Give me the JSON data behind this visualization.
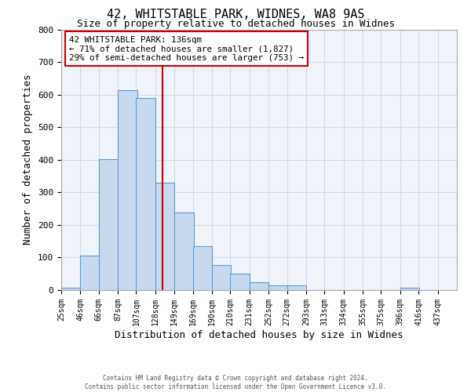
{
  "title_line1": "42, WHITSTABLE PARK, WIDNES, WA8 9AS",
  "title_line2": "Size of property relative to detached houses in Widnes",
  "xlabel": "Distribution of detached houses by size in Widnes",
  "ylabel": "Number of detached properties",
  "bar_left_edges": [
    25,
    46,
    66,
    87,
    107,
    128,
    149,
    169,
    190,
    210,
    231,
    252,
    272,
    293,
    313,
    334,
    355,
    375,
    396,
    416
  ],
  "bar_heights": [
    7,
    105,
    402,
    614,
    590,
    330,
    237,
    135,
    76,
    50,
    25,
    15,
    14,
    0,
    0,
    0,
    0,
    0,
    7,
    0
  ],
  "bin_width": 21,
  "bar_facecolor": "#c9d9ed",
  "bar_edgecolor": "#5b9bd5",
  "vline_x": 136,
  "vline_color": "#cc0000",
  "annotation_line1": "42 WHITSTABLE PARK: 136sqm",
  "annotation_line2": "← 71% of detached houses are smaller (1,827)",
  "annotation_line3": "29% of semi-detached houses are larger (753) →",
  "annotation_box_edgecolor": "#cc0000",
  "annotation_box_facecolor": "#ffffff",
  "ylim": [
    0,
    800
  ],
  "yticks": [
    0,
    100,
    200,
    300,
    400,
    500,
    600,
    700,
    800
  ],
  "x_tick_labels": [
    "25sqm",
    "46sqm",
    "66sqm",
    "87sqm",
    "107sqm",
    "128sqm",
    "149sqm",
    "169sqm",
    "190sqm",
    "210sqm",
    "231sqm",
    "252sqm",
    "272sqm",
    "293sqm",
    "313sqm",
    "334sqm",
    "355sqm",
    "375sqm",
    "396sqm",
    "416sqm",
    "437sqm"
  ],
  "grid_color": "#d0d8e8",
  "bg_color": "#f0f4fa",
  "footer_line1": "Contains HM Land Registry data © Crown copyright and database right 2024.",
  "footer_line2": "Contains public sector information licensed under the Open Government Licence v3.0."
}
